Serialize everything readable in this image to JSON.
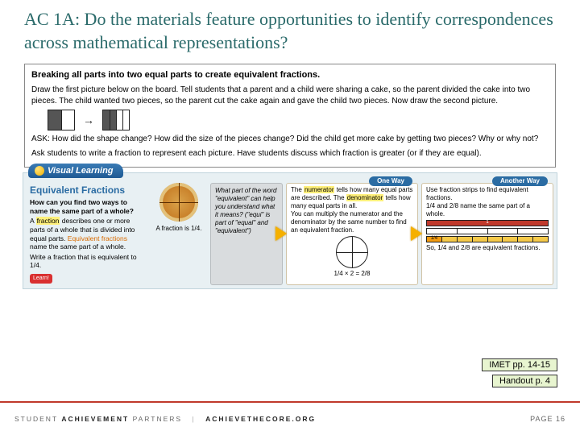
{
  "title": "AC 1A: Do the materials feature opportunities to identify correspondences across mathematical representations?",
  "section1": {
    "heading": "Breaking all parts into two equal parts to create equivalent fractions.",
    "p1": "Draw the first picture below on the board. Tell students that a parent and a child were sharing a cake, so the parent divided the cake into two pieces. The child wanted two pieces, so the parent cut the cake again and gave the child two pieces. Now draw the second picture.",
    "p2": "ASK: How did the shape change? How did the size of the pieces change? Did the child get more cake by getting two pieces? Why or why not?",
    "p3": "Ask students to write a fraction to represent each picture. Have students discuss which fraction is greater (or if they are equal)."
  },
  "visual": {
    "tab": "Visual Learning",
    "left_title": "Equivalent Fractions",
    "left_q": "How can you find two ways to name the same part of a whole?",
    "left_body": "A fraction describes one or more parts of a whole that is divided into equal parts. Equivalent fractions name the same part of a whole.",
    "left_prompt": "Write a fraction that is equivalent to 1/4.",
    "learn_star": "Learn!",
    "pizza_caption": "A fraction is 1/4.",
    "gray_box": "What part of the word \"equivalent\" can help you understand what it means? (\"equi\" is part of \"equal\" and \"equivalent\")",
    "col1_badge": "One Way",
    "col1_text1": "The numerator tells how many equal parts are described. The denominator tells how many equal parts in all.",
    "col1_text2": "You can multiply the numerator and the denominator by the same number to find an equivalent fraction.",
    "col1_eq": "1/4 × 2 = 2/8",
    "col2_badge": "Another Way",
    "col2_text1": "Use fraction strips to find equivalent fractions.",
    "col2_text2": "1/4 and 2/8 name the same part of a whole.",
    "col2_text3": "So, 1/4 and 2/8 are equivalent fractions."
  },
  "labels": {
    "imet": "IMET pp. 14-15",
    "handout": "Handout p. 4"
  },
  "footer": {
    "brand_left": "STUDENT ACHIEVEMENT PARTNERS",
    "brand_right": "ACHIEVETHECORE.ORG",
    "page": "PAGE 16"
  }
}
